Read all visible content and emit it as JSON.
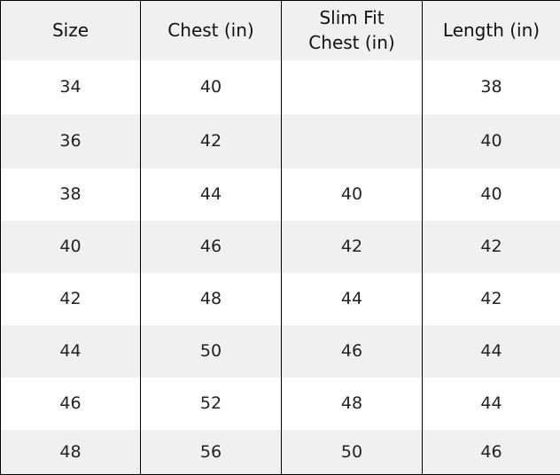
{
  "table": {
    "headers": [
      "Size",
      "Chest (in)",
      "Slim Fit Chest (in)",
      "Length (in)"
    ],
    "header_lines": {
      "slim_1": "Slim Fit",
      "slim_2": "Chest (in)"
    },
    "rows": [
      [
        "34",
        "40",
        "",
        "38"
      ],
      [
        "36",
        "42",
        "",
        "40"
      ],
      [
        "38",
        "44",
        "40",
        "40"
      ],
      [
        "40",
        "46",
        "42",
        "42"
      ],
      [
        "42",
        "48",
        "44",
        "42"
      ],
      [
        "44",
        "50",
        "46",
        "44"
      ],
      [
        "46",
        "52",
        "48",
        "44"
      ],
      [
        "48",
        "56",
        "50",
        "46"
      ]
    ]
  },
  "colors": {
    "stripe": "#f0f0f0",
    "border": "#000000"
  }
}
